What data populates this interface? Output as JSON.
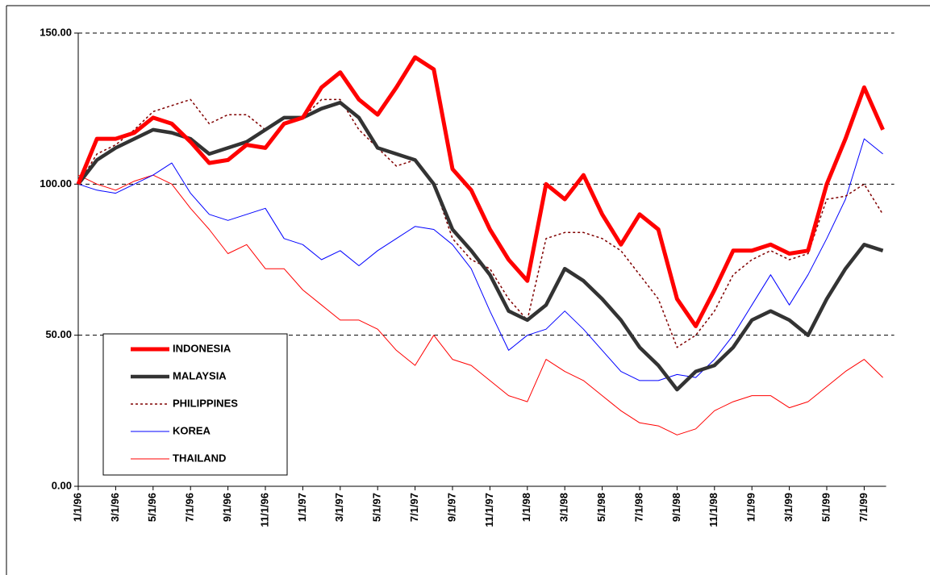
{
  "chart_data": {
    "type": "line",
    "categories": [
      "1/1/96",
      null,
      "3/1/96",
      null,
      "5/1/96",
      null,
      "7/1/96",
      null,
      "9/1/96",
      null,
      "11/1/96",
      null,
      "1/1/97",
      null,
      "3/1/97",
      null,
      "5/1/97",
      null,
      "7/1/97",
      null,
      "9/1/97",
      null,
      "11/1/97",
      null,
      "1/1/98",
      null,
      "3/1/98",
      null,
      "5/1/98",
      null,
      "7/1/98",
      null,
      "9/1/98",
      null,
      "11/1/98",
      null,
      "1/1/99",
      null,
      "3/1/99",
      null,
      "5/1/99",
      null,
      "7/1/99",
      null
    ],
    "series": [
      {
        "name": "INDONESIA",
        "color": "#ff0000",
        "values": [
          100,
          115,
          115,
          117,
          122,
          120,
          114,
          107,
          108,
          113,
          112,
          120,
          122,
          132,
          137,
          128,
          123,
          132,
          142,
          138,
          105,
          98,
          85,
          75,
          68,
          100,
          95,
          103,
          90,
          80,
          90,
          85,
          62,
          53,
          65,
          78,
          78,
          80,
          77,
          78,
          100,
          115,
          132,
          118
        ]
      },
      {
        "name": "MALAYSIA",
        "color": "#333333",
        "values": [
          100,
          108,
          112,
          115,
          118,
          117,
          115,
          110,
          112,
          114,
          118,
          122,
          122,
          125,
          127,
          122,
          112,
          110,
          108,
          100,
          85,
          78,
          70,
          58,
          55,
          60,
          72,
          68,
          62,
          55,
          46,
          40,
          32,
          38,
          40,
          46,
          55,
          58,
          55,
          50,
          62,
          72,
          80,
          78
        ]
      },
      {
        "name": "PHILIPPINES",
        "color": "#800000",
        "values": [
          100,
          110,
          113,
          118,
          124,
          126,
          128,
          120,
          123,
          123,
          118,
          122,
          122,
          128,
          128,
          118,
          112,
          106,
          108,
          100,
          82,
          75,
          72,
          62,
          55,
          82,
          84,
          84,
          82,
          78,
          70,
          62,
          46,
          50,
          58,
          70,
          75,
          78,
          75,
          77,
          95,
          96,
          100,
          90
        ]
      },
      {
        "name": "KOREA",
        "color": "#0000ff",
        "values": [
          100,
          98,
          97,
          100,
          103,
          107,
          97,
          90,
          88,
          90,
          92,
          82,
          80,
          75,
          78,
          73,
          78,
          82,
          86,
          85,
          80,
          72,
          58,
          45,
          50,
          52,
          58,
          52,
          45,
          38,
          35,
          35,
          37,
          36,
          42,
          50,
          60,
          70,
          60,
          70,
          82,
          95,
          115,
          110
        ]
      },
      {
        "name": "THAILAND",
        "color": "#ff0000",
        "values": [
          103,
          100,
          98,
          101,
          103,
          100,
          92,
          85,
          77,
          80,
          72,
          72,
          65,
          60,
          55,
          55,
          52,
          45,
          40,
          50,
          42,
          40,
          35,
          30,
          28,
          42,
          38,
          35,
          30,
          25,
          21,
          20,
          17,
          19,
          25,
          28,
          30,
          30,
          26,
          28,
          33,
          38,
          42,
          36
        ]
      }
    ],
    "ylim": [
      0,
      150
    ],
    "yticks": [
      {
        "value": 0,
        "label": "0.00"
      },
      {
        "value": 50,
        "label": "50.00"
      },
      {
        "value": 100,
        "label": "100.00"
      },
      {
        "value": 150,
        "label": "150.00"
      }
    ],
    "grid": true
  }
}
